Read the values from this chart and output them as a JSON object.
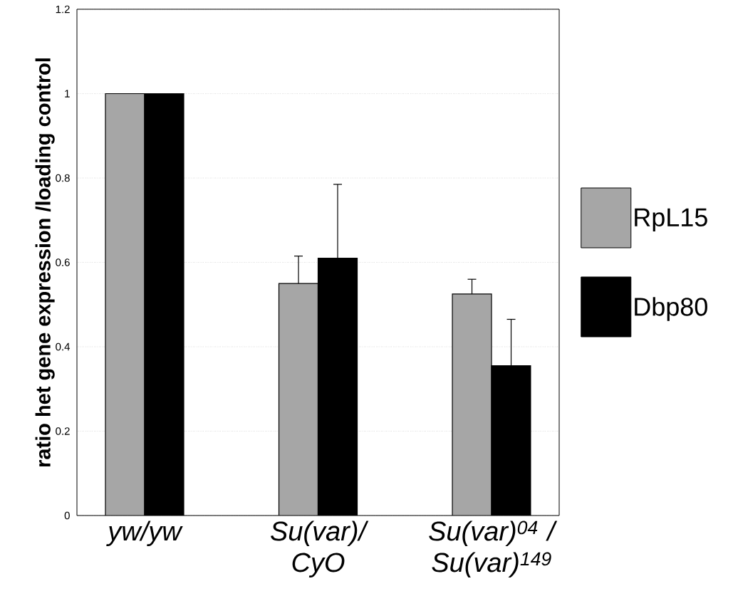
{
  "chart_data": {
    "type": "bar",
    "ylabel": "ratio het gene expression /loading control",
    "categories": [
      "yw/yw",
      "Su(var)/ CyO",
      "Su(var)$^{04}$ / Su(var)$^{149}$"
    ],
    "series": [
      {
        "name": "RpL15",
        "color": "#a6a6a6",
        "values": [
          1,
          0.55,
          0.525
        ],
        "errors": [
          null,
          [
            0.55,
            0.615
          ],
          [
            0.525,
            0.56
          ]
        ]
      },
      {
        "name": "Dbp80",
        "color": "#000000",
        "values": [
          1,
          0.61,
          0.355
        ],
        "errors": [
          null,
          [
            0.61,
            0.785
          ],
          [
            0.355,
            0.465
          ]
        ]
      }
    ],
    "ylim": [
      0,
      1.2
    ],
    "yticks": [
      0,
      0.2,
      0.4,
      0.6,
      0.8,
      1,
      1.2
    ],
    "grid": "y",
    "legend": "right"
  }
}
